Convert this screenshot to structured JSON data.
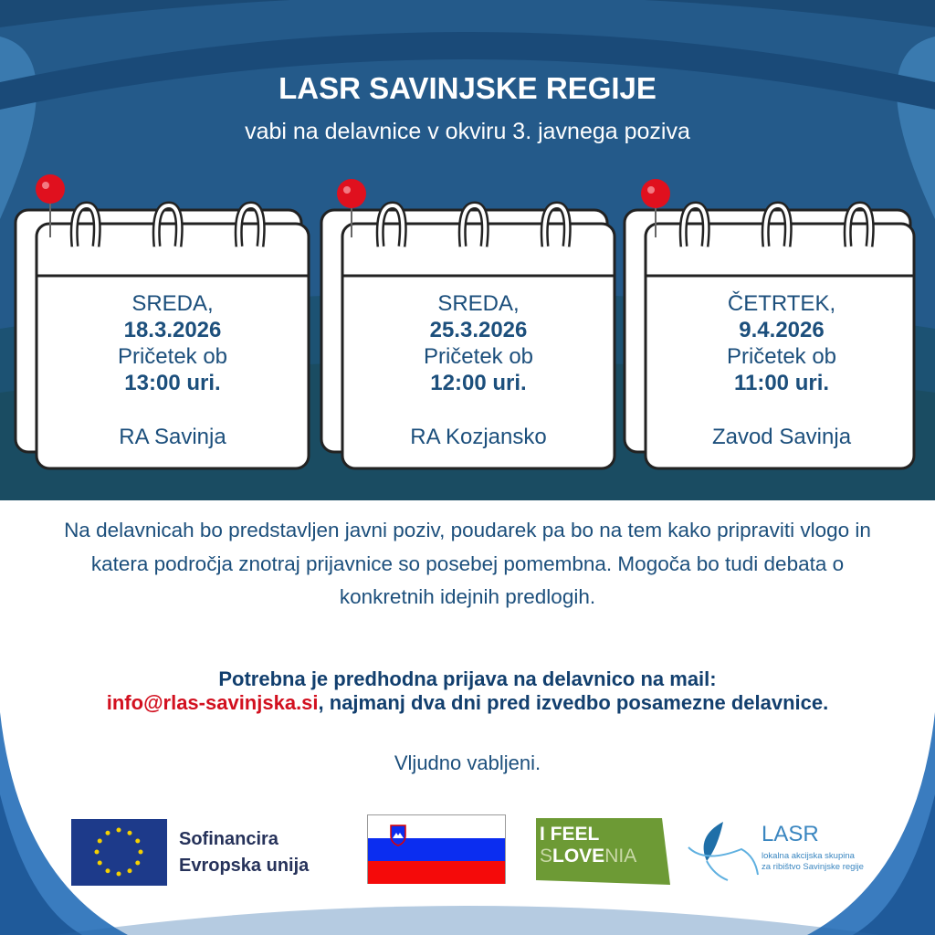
{
  "header": {
    "title": "LASR SAVINJSKE REGIJE",
    "subtitle": "vabi na delavnice v okviru 3. javnega poziva"
  },
  "workshops": [
    {
      "day": "SREDA,",
      "date": "18.3.2026",
      "start_label": "Pričetek ob",
      "time": "13:00 uri.",
      "location": "RA Savinja"
    },
    {
      "day": "SREDA,",
      "date": "25.3.2026",
      "start_label": "Pričetek ob",
      "time": "12:00 uri.",
      "location": "RA Kozjansko"
    },
    {
      "day": "ČETRTEK,",
      "date": "9.4.2026",
      "start_label": "Pričetek ob",
      "time": "11:00 uri.",
      "location": "Zavod Savinja"
    }
  ],
  "description": "Na delavnicah bo predstavljen javni poziv, poudarek pa bo na tem kako pripraviti vlogo in katera področja znotraj prijavnice so posebej pomembna. Mogoča bo tudi debata o konkretnih idejnih predlogih.",
  "registration": {
    "line1": "Potrebna je predhodna prijava na delavnico na mail:",
    "email": "info@rlas-savinjska.si",
    "line2": ", najmanj dva dni pred izvedbo posamezne delavnice."
  },
  "closing": "Vljudno vabljeni.",
  "logos": {
    "eu_line1": "Sofinancira",
    "eu_line2": "Evropska unija",
    "ifeel_line1": "I FEEL",
    "ifeel_s": "S",
    "ifeel_love": "LOVE",
    "ifeel_nia": "NIA",
    "lasr_name": "LASR",
    "lasr_line1": "lokalna akcijska skupina",
    "lasr_line2": "za ribištvo Savinjske regije"
  },
  "colors": {
    "text": "#1c4f7c",
    "email": "#d2101f",
    "background_top": "#1e4f7c",
    "pin": "#e0101e"
  }
}
